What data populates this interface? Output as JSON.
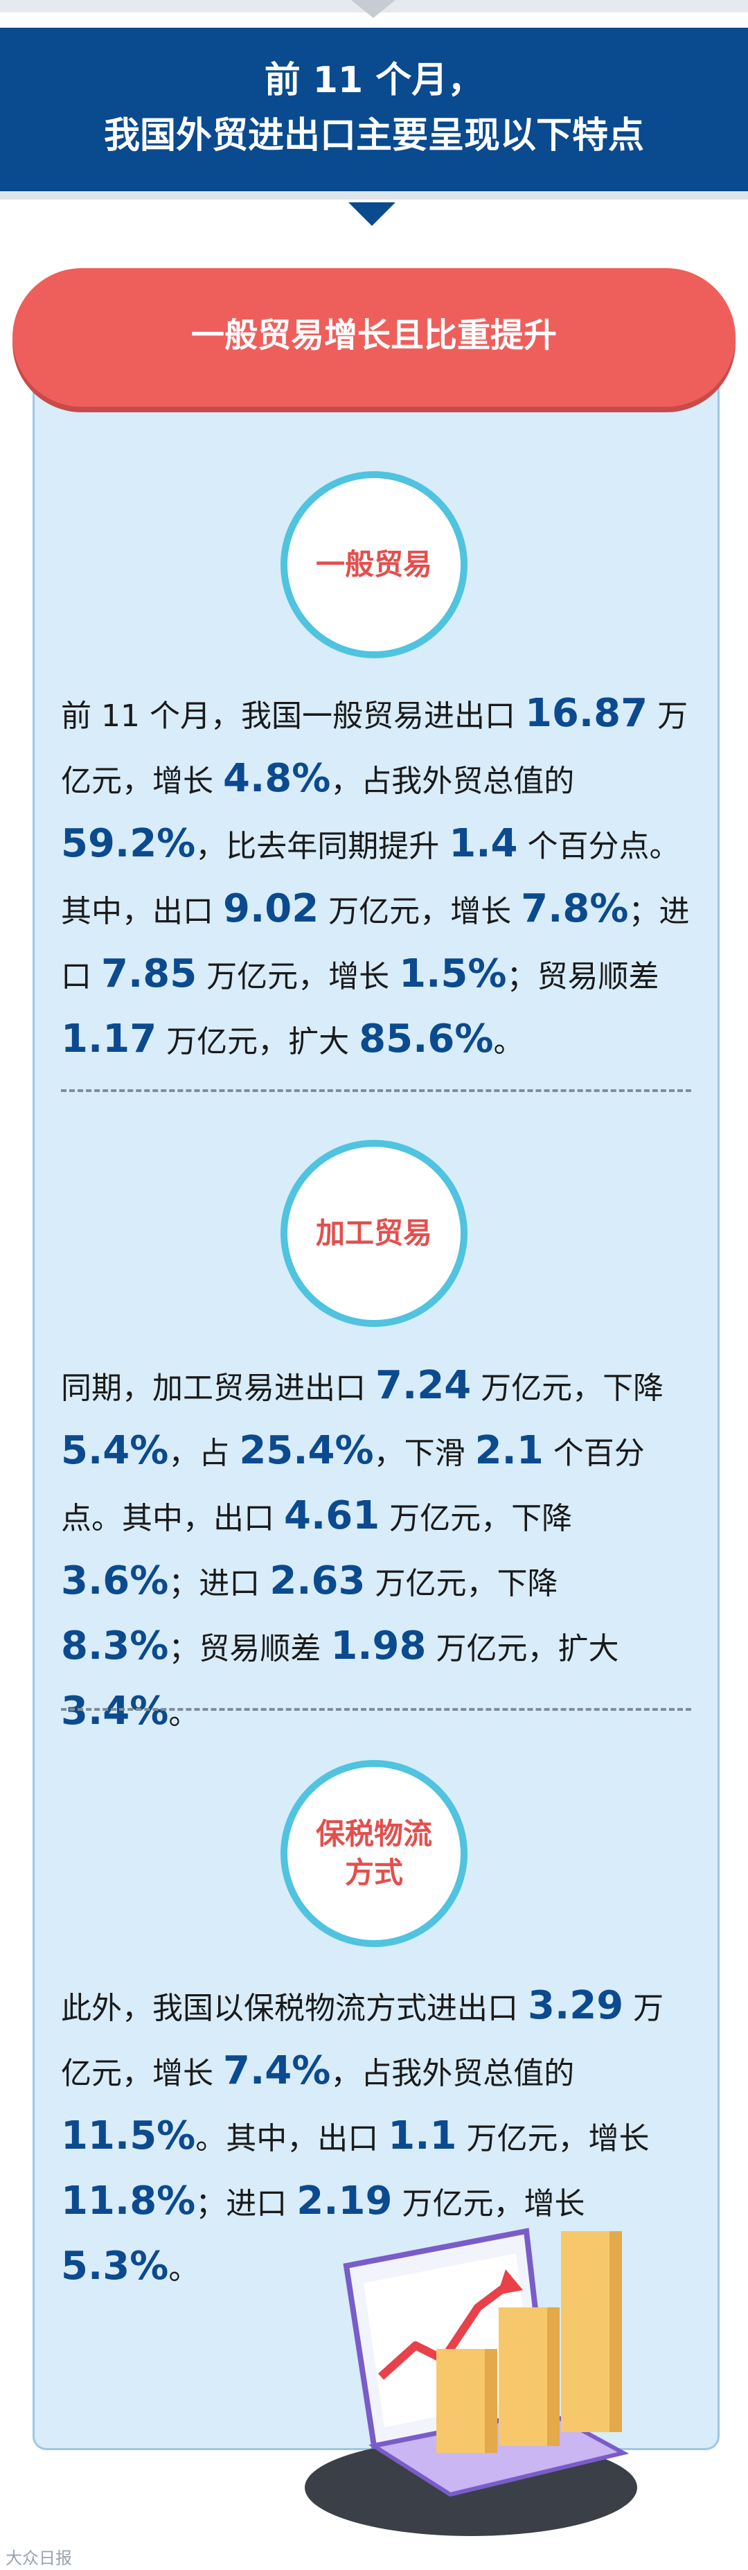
{
  "header": {
    "line1": "前 11 个月，",
    "line2": "我国外贸进出口主要呈现以下特点"
  },
  "banner": {
    "label": "一般贸易增长且比重提升"
  },
  "sections": [
    {
      "badge": "一般贸易",
      "segments": [
        "前 11 个月，我国一般贸易进出口 ",
        "16.87",
        " 万亿元，增长 ",
        "4.8%",
        "，占我外贸总值的 ",
        "59.2%",
        "，比去年同期提升 ",
        "1.4",
        " 个百分点。其中，出口 ",
        "9.02",
        " 万亿元，增长 ",
        "7.8%",
        "；进口 ",
        "7.85",
        " 万亿元，增长 ",
        "1.5%",
        "；贸易顺差 ",
        "1.17",
        " 万亿元，扩大 ",
        "85.6%",
        "。"
      ]
    },
    {
      "badge": "加工贸易",
      "segments": [
        "同期，加工贸易进出口 ",
        "7.24",
        " 万亿元，下降 ",
        "5.4%",
        "，占 ",
        "25.4%",
        "，下滑 ",
        "2.1",
        " 个百分点。其中，出口 ",
        "4.61",
        " 万亿元，下降 ",
        "3.6%",
        "；进口 ",
        "2.63",
        " 万亿元，下降 ",
        "8.3%",
        "；贸易顺差 ",
        "1.98",
        " 万亿元，扩大 ",
        "3.4%",
        "。"
      ]
    },
    {
      "badge_line1": "保税物流",
      "badge_line2": "方式",
      "segments": [
        "此外，我国以保税物流方式进出口 ",
        "3.29",
        " 万亿元，增长 ",
        "7.4%",
        "，占我外贸总值的 ",
        "11.5%",
        "。其中，出口 ",
        "1.1",
        " 万亿元，增长 ",
        "11.8%",
        "；进口 ",
        "2.19",
        " 万亿元，增长 ",
        "5.3%",
        "。"
      ]
    }
  ],
  "watermark": "大众日报",
  "colors": {
    "header_bg": "#0a4a8e",
    "banner_bg": "#ee5f5c",
    "panel_bg": "#d8ecf9",
    "badge_ring": "#4fc3df",
    "highlight": "#0b4a8e"
  },
  "icons": {
    "illustration": "laptop-growth-chart-icon"
  }
}
